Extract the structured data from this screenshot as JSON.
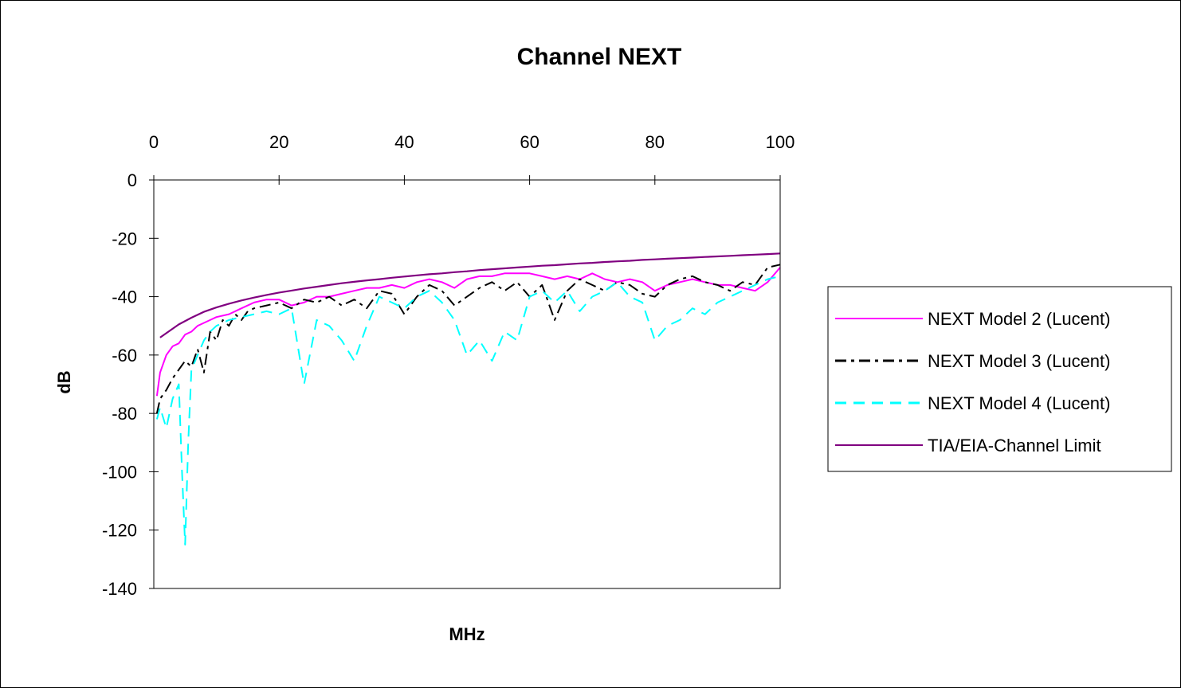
{
  "chart_data": {
    "type": "line",
    "title": "Channel NEXT",
    "xlabel": "MHz",
    "ylabel": "dB",
    "xlim": [
      0,
      100
    ],
    "ylim": [
      -140,
      0
    ],
    "x_ticks": [
      0,
      20,
      40,
      60,
      80,
      100
    ],
    "y_ticks": [
      0,
      -20,
      -40,
      -60,
      -80,
      -100,
      -120,
      -140
    ],
    "x_tick_labels": [
      "0",
      "20",
      "40",
      "60",
      "80",
      "100"
    ],
    "y_tick_labels": [
      "0",
      "-20",
      "-40",
      "-60",
      "-80",
      "-100",
      "-120",
      "-140"
    ],
    "x_axis_position": "top",
    "grid": false,
    "legend_position": "right",
    "series": [
      {
        "name": "NEXT Model 2 (Lucent)",
        "color": "#ff00ff",
        "dash": "solid",
        "x": [
          0.5,
          1,
          2,
          3,
          4,
          5,
          6,
          7,
          8,
          9,
          10,
          12,
          14,
          16,
          18,
          20,
          22,
          24,
          26,
          28,
          30,
          32,
          34,
          36,
          38,
          40,
          42,
          44,
          46,
          48,
          50,
          52,
          54,
          56,
          58,
          60,
          62,
          64,
          66,
          68,
          70,
          72,
          74,
          76,
          78,
          80,
          82,
          84,
          86,
          88,
          90,
          92,
          94,
          96,
          98,
          100
        ],
        "y": [
          -74,
          -66,
          -60,
          -57,
          -56,
          -53,
          -52,
          -50,
          -49,
          -48,
          -47,
          -46,
          -44,
          -42,
          -41,
          -41,
          -43,
          -42,
          -40,
          -40,
          -39,
          -38,
          -37,
          -37,
          -36,
          -37,
          -35,
          -34,
          -35,
          -37,
          -34,
          -33,
          -33,
          -32,
          -32,
          -32,
          -33,
          -34,
          -33,
          -34,
          -32,
          -34,
          -35,
          -34,
          -35,
          -38,
          -36,
          -35,
          -34,
          -35,
          -36,
          -36,
          -37,
          -38,
          -35,
          -30
        ]
      },
      {
        "name": "NEXT Model 3 (Lucent)",
        "color": "#000000",
        "dash": "dashdot",
        "x": [
          0.5,
          1,
          2,
          3,
          4,
          5,
          6,
          7,
          8,
          9,
          10,
          11,
          12,
          13,
          14,
          15,
          16,
          18,
          20,
          22,
          24,
          26,
          28,
          30,
          32,
          34,
          36,
          38,
          40,
          42,
          44,
          46,
          48,
          50,
          52,
          54,
          56,
          58,
          60,
          62,
          64,
          66,
          68,
          70,
          72,
          74,
          76,
          78,
          80,
          82,
          84,
          86,
          88,
          90,
          92,
          94,
          96,
          98,
          100
        ],
        "y": [
          -80,
          -75,
          -72,
          -68,
          -65,
          -62,
          -64,
          -58,
          -66,
          -52,
          -55,
          -48,
          -50,
          -46,
          -48,
          -45,
          -44,
          -43,
          -42,
          -44,
          -41,
          -42,
          -40,
          -43,
          -41,
          -44,
          -38,
          -39,
          -46,
          -40,
          -36,
          -38,
          -43,
          -40,
          -37,
          -35,
          -38,
          -35,
          -40,
          -36,
          -48,
          -38,
          -34,
          -36,
          -38,
          -35,
          -36,
          -39,
          -40,
          -36,
          -34,
          -33,
          -35,
          -36,
          -38,
          -35,
          -36,
          -30,
          -29
        ]
      },
      {
        "name": "NEXT Model 4 (Lucent)",
        "color": "#00ffff",
        "dash": "dash",
        "x": [
          0.5,
          1,
          2,
          3,
          4,
          4.5,
          5,
          5.5,
          6,
          7,
          8,
          9,
          10,
          12,
          14,
          16,
          18,
          20,
          22,
          24,
          26,
          28,
          30,
          32,
          34,
          36,
          38,
          40,
          42,
          44,
          46,
          48,
          50,
          52,
          54,
          56,
          58,
          60,
          62,
          64,
          66,
          68,
          70,
          72,
          74,
          76,
          78,
          80,
          82,
          84,
          86,
          88,
          90,
          92,
          94,
          96,
          98,
          100
        ],
        "y": [
          -82,
          -78,
          -85,
          -75,
          -70,
          -100,
          -125,
          -90,
          -65,
          -60,
          -55,
          -52,
          -50,
          -48,
          -47,
          -46,
          -45,
          -46,
          -44,
          -70,
          -48,
          -50,
          -55,
          -62,
          -50,
          -40,
          -42,
          -44,
          -40,
          -38,
          -42,
          -48,
          -60,
          -55,
          -62,
          -52,
          -55,
          -40,
          -38,
          -42,
          -38,
          -45,
          -40,
          -38,
          -35,
          -40,
          -42,
          -55,
          -50,
          -48,
          -44,
          -46,
          -42,
          -40,
          -38,
          -36,
          -34,
          -33
        ]
      },
      {
        "name": "TIA/EIA-Channel Limit",
        "color": "#800080",
        "dash": "solid",
        "x": [
          1,
          2,
          4,
          6,
          8,
          10,
          12,
          14,
          16,
          18,
          20,
          22,
          24,
          26,
          28,
          30,
          32,
          34,
          36,
          38,
          40,
          42,
          44,
          46,
          48,
          50,
          52,
          54,
          56,
          58,
          60,
          62,
          64,
          66,
          68,
          70,
          72,
          74,
          76,
          78,
          80,
          82,
          84,
          86,
          88,
          90,
          92,
          94,
          96,
          98,
          100
        ],
        "y": [
          -54,
          -52.5,
          -49.5,
          -47.2,
          -45.2,
          -43.7,
          -42.4,
          -41.3,
          -40.3,
          -39.4,
          -38.6,
          -37.9,
          -37.2,
          -36.6,
          -36.0,
          -35.4,
          -34.9,
          -34.4,
          -34.0,
          -33.5,
          -33.1,
          -32.7,
          -32.3,
          -32.0,
          -31.6,
          -31.3,
          -30.9,
          -30.6,
          -30.3,
          -30.0,
          -29.7,
          -29.4,
          -29.2,
          -28.9,
          -28.6,
          -28.4,
          -28.1,
          -27.9,
          -27.7,
          -27.4,
          -27.2,
          -27.0,
          -26.8,
          -26.6,
          -26.4,
          -26.2,
          -26.0,
          -25.8,
          -25.6,
          -25.4,
          -25.2
        ]
      }
    ]
  }
}
